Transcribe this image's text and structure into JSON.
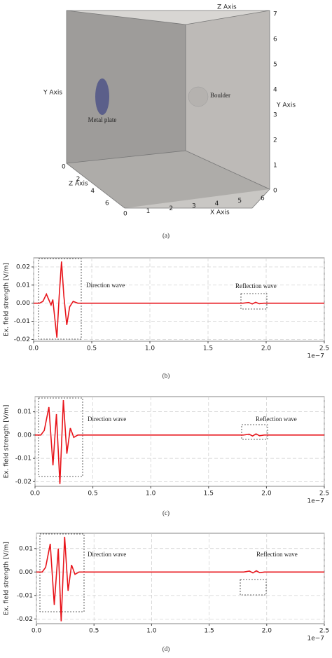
{
  "scene": {
    "caption": "(a)",
    "x_axis_label": "X Axis",
    "y_axis_label": "Y Axis",
    "z_axis_label": "Z Axis",
    "objects": [
      "Metal plate",
      "Boulder"
    ],
    "x_ticks": [
      0,
      1,
      2,
      3,
      4,
      5,
      6
    ],
    "y_ticks": [
      0,
      1,
      2,
      3,
      4,
      5,
      6,
      7
    ],
    "z_ticks": [
      0,
      2,
      4,
      6
    ]
  },
  "chart_data": [
    {
      "type": "line",
      "caption": "(b)",
      "ylabel": "Ex. field strength [V/m]",
      "color": "#e8151b",
      "annotations": [
        "Direction wave",
        "Reflection wave"
      ],
      "offset_label": "1e−7",
      "x": [
        0,
        0.05,
        0.08,
        0.11,
        0.13,
        0.15,
        0.165,
        0.2,
        0.22,
        0.24,
        0.26,
        0.285,
        0.31,
        0.34,
        0.38,
        1.8,
        1.85,
        1.88,
        1.91,
        1.94,
        1.98,
        2.5
      ],
      "values": [
        0,
        0,
        0.001,
        0.005,
        0.002,
        -0.001,
        0.002,
        -0.019,
        0.004,
        0.023,
        0.004,
        -0.012,
        -0.002,
        0.001,
        0,
        0,
        0.0004,
        -0.0004,
        0.0005,
        -0.0003,
        0,
        0
      ],
      "xlim": [
        0,
        2.5
      ],
      "ylim": [
        -0.021,
        0.025
      ],
      "xticks": [
        {
          "value": 0,
          "label": "0.0"
        },
        0.5,
        {
          "value": 1,
          "label": "1.0"
        },
        1.5,
        {
          "value": 2,
          "label": "2.0"
        },
        2.5
      ],
      "yticks": [
        0.02,
        0.01,
        {
          "value": 0,
          "label": "0.00"
        },
        -0.01,
        -0.02
      ],
      "grid": true
    },
    {
      "type": "line",
      "caption": "(c)",
      "ylabel": "Ex. field strength [V/m]",
      "color": "#e8151b",
      "annotations": [
        "Direction wave",
        "Reflection wave"
      ],
      "offset_label": "1e−7",
      "x": [
        0,
        0.05,
        0.08,
        0.12,
        0.155,
        0.185,
        0.215,
        0.245,
        0.275,
        0.305,
        0.335,
        0.37,
        1.8,
        1.85,
        1.88,
        1.91,
        1.94,
        1.98,
        2.5
      ],
      "values": [
        0,
        0,
        0.002,
        0.012,
        -0.013,
        0.009,
        -0.021,
        0.015,
        -0.008,
        0.003,
        -0.001,
        0,
        0,
        0.0004,
        -0.0004,
        0.0005,
        -0.0003,
        0,
        0
      ],
      "xlim": [
        0,
        2.5
      ],
      "ylim": [
        -0.022,
        0.0165
      ],
      "xticks": [
        {
          "value": 0,
          "label": "0.0"
        },
        0.5,
        {
          "value": 1,
          "label": "1.0"
        },
        1.5,
        {
          "value": 2,
          "label": "2.0"
        },
        2.5
      ],
      "yticks": [
        0.01,
        {
          "value": 0,
          "label": "0.00"
        },
        -0.01,
        -0.02
      ],
      "grid": true
    },
    {
      "type": "line",
      "caption": "(d)",
      "ylabel": "Ex. field strength [V/m]",
      "color": "#e8151b",
      "annotations": [
        "Direction wave",
        "Reflection wave"
      ],
      "offset_label": "1e−7",
      "x": [
        0,
        0.05,
        0.08,
        0.12,
        0.155,
        0.19,
        0.215,
        0.245,
        0.275,
        0.305,
        0.335,
        0.37,
        1.8,
        1.85,
        1.88,
        1.91,
        1.94,
        1.98,
        2.5
      ],
      "values": [
        0,
        0,
        0.002,
        0.012,
        -0.014,
        0.01,
        -0.021,
        0.015,
        -0.008,
        0.003,
        -0.001,
        0,
        0,
        0.0004,
        -0.0004,
        0.0005,
        -0.0003,
        0,
        0
      ],
      "xlim": [
        0,
        2.5
      ],
      "ylim": [
        -0.022,
        0.0165
      ],
      "xticks": [
        {
          "value": 0,
          "label": "0.0"
        },
        0.5,
        {
          "value": 1,
          "label": "1.0"
        },
        1.5,
        {
          "value": 2,
          "label": "2.0"
        },
        2.5
      ],
      "yticks": [
        0.01,
        {
          "value": 0,
          "label": "0.00"
        },
        -0.01,
        -0.02
      ],
      "grid": true
    }
  ]
}
